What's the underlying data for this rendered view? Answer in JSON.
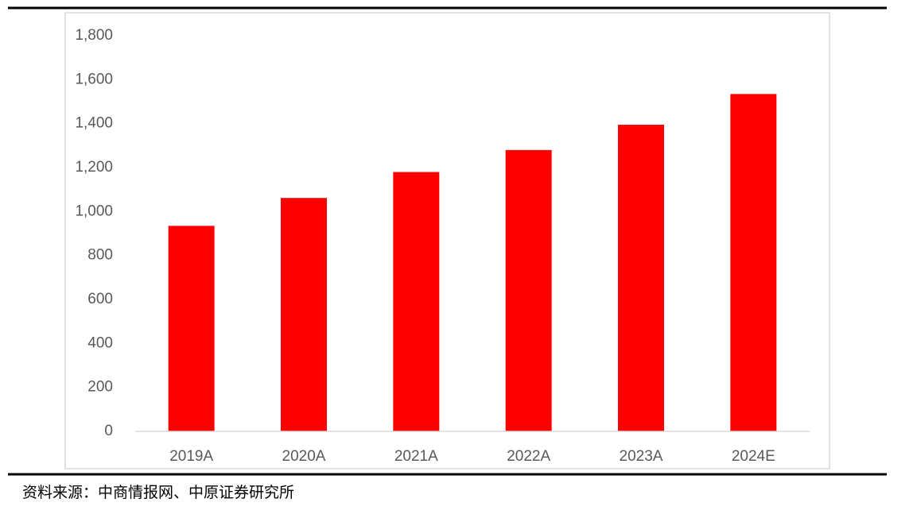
{
  "chart_data": {
    "type": "bar",
    "categories": [
      "2019A",
      "2020A",
      "2021A",
      "2022A",
      "2023A",
      "2024E"
    ],
    "values": [
      935,
      1062,
      1180,
      1280,
      1395,
      1535
    ],
    "color": "#ff0000",
    "ylim": [
      0,
      1800
    ],
    "yticks": [
      0,
      200,
      400,
      600,
      800,
      {
        "value": 1000,
        "label": "1,000"
      },
      {
        "value": 1200,
        "label": "1,200"
      },
      {
        "value": 1400,
        "label": "1,400"
      },
      {
        "value": 1600,
        "label": "1,600"
      },
      {
        "value": 1800,
        "label": "1,800"
      }
    ],
    "grid": false,
    "source": "资料来源：中商情报网、中原证券研究所"
  }
}
